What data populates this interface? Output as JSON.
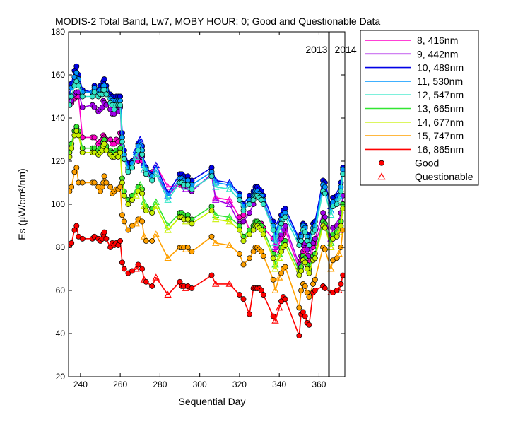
{
  "chart_data": {
    "type": "line",
    "title": "MODIS-2 Total Band,  Lw7, MOBY HOUR: 0;  Good and Questionable Data",
    "xlabel": "Sequential Day",
    "ylabel": "Es (µW/cm²/nm)",
    "xlim": [
      234,
      373
    ],
    "ylim": [
      20,
      180
    ],
    "xticks": [
      240,
      260,
      280,
      300,
      320,
      340,
      360
    ],
    "yticks": [
      20,
      40,
      60,
      80,
      100,
      120,
      140,
      160,
      180
    ],
    "grid": false,
    "legend_position": "outside-right",
    "year_divider": {
      "x": 365,
      "labels": [
        "2013",
        "2014"
      ]
    },
    "marker_legend": [
      {
        "label": "Good",
        "marker": "filled-circle"
      },
      {
        "label": "Questionable",
        "marker": "open-triangle"
      }
    ],
    "x": [
      234.5,
      235.5,
      237,
      238,
      239,
      241,
      246,
      247,
      249,
      250,
      251,
      251.5,
      252,
      253,
      255,
      256,
      257,
      258,
      259,
      260,
      261,
      262,
      264,
      266,
      268,
      269,
      270,
      271,
      272,
      273,
      276,
      278,
      284,
      290,
      291,
      292,
      293,
      294,
      296,
      306,
      308,
      315,
      320,
      322,
      325,
      327,
      328,
      329,
      330,
      331,
      332,
      337,
      338,
      340,
      341,
      342,
      343,
      350,
      351,
      352,
      353,
      354,
      355,
      357,
      358,
      362,
      363,
      366,
      367,
      369,
      370,
      371,
      372
    ],
    "questionable_x": [
      268,
      270,
      272,
      278,
      284,
      293,
      308,
      315,
      338,
      340,
      356,
      360,
      366,
      370
    ],
    "series": [
      {
        "name": "8, 416nm",
        "color": "#ff00c8",
        "values": [
          146,
          147,
          149,
          150,
          150,
          131,
          131,
          131,
          128,
          129,
          130,
          132,
          131,
          130,
          130,
          128,
          128,
          130,
          129,
          133,
          125,
          121,
          116,
          117,
          121,
          120,
          122,
          120,
          116,
          114,
          115,
          118,
          108,
          109,
          110,
          108,
          108,
          109,
          107,
          113,
          103,
          102,
          94,
          95,
          88,
          90,
          91,
          91,
          90,
          91,
          89,
          84,
          78,
          82,
          84,
          86,
          88,
          70,
          74,
          78,
          79,
          76,
          73,
          80,
          82,
          92,
          90,
          80,
          85,
          86,
          88,
          92,
          100
        ]
      },
      {
        "name": "9, 442nm",
        "color": "#a000e6",
        "values": [
          147,
          148,
          151,
          152,
          152,
          145,
          146,
          145,
          143,
          144,
          145,
          148,
          147,
          146,
          144,
          142,
          142,
          144,
          143,
          145,
          127,
          121,
          115,
          117,
          122,
          122,
          124,
          122,
          116,
          114,
          112,
          114,
          104,
          110,
          110,
          108,
          107,
          108,
          106,
          114,
          102,
          100,
          91,
          92,
          96,
          100,
          104,
          106,
          105,
          104,
          101,
          88,
          80,
          84,
          86,
          88,
          90,
          72,
          76,
          81,
          82,
          79,
          76,
          82,
          84,
          96,
          94,
          84,
          89,
          90,
          92,
          96,
          104
        ]
      },
      {
        "name": "10, 489nm",
        "color": "#0000e6",
        "values": [
          151,
          156,
          162,
          164,
          160,
          153,
          152,
          155,
          153,
          155,
          154,
          157,
          158,
          155,
          151,
          150,
          148,
          150,
          150,
          150,
          133,
          125,
          119,
          120,
          125,
          128,
          130,
          127,
          119,
          117,
          114,
          118,
          105,
          114,
          114,
          113,
          112,
          113,
          111,
          117,
          111,
          110,
          105,
          100,
          104,
          106,
          108,
          108,
          107,
          106,
          104,
          92,
          86,
          92,
          95,
          97,
          98,
          84,
          86,
          91,
          90,
          86,
          84,
          91,
          92,
          111,
          110,
          99,
          103,
          104,
          106,
          110,
          117
        ]
      },
      {
        "name": "11, 530nm",
        "color": "#0096ff",
        "values": [
          150,
          154,
          159,
          161,
          158,
          152,
          152,
          154,
          152,
          153,
          153,
          155,
          155,
          153,
          149,
          148,
          146,
          148,
          148,
          148,
          131,
          123,
          117,
          119,
          124,
          127,
          128,
          125,
          118,
          116,
          113,
          116,
          104,
          112,
          112,
          111,
          110,
          111,
          109,
          115,
          110,
          109,
          104,
          99,
          102,
          104,
          106,
          106,
          105,
          104,
          102,
          90,
          84,
          90,
          93,
          95,
          96,
          83,
          85,
          90,
          89,
          85,
          83,
          89,
          90,
          109,
          108,
          97,
          101,
          102,
          104,
          108,
          116
        ]
      },
      {
        "name": "12, 547nm",
        "color": "#32e6c8",
        "values": [
          146,
          150,
          155,
          157,
          155,
          150,
          150,
          152,
          150,
          151,
          151,
          153,
          153,
          151,
          147,
          146,
          144,
          146,
          146,
          146,
          129,
          121,
          115,
          117,
          122,
          125,
          126,
          123,
          116,
          114,
          111,
          114,
          102,
          110,
          110,
          109,
          108,
          109,
          107,
          113,
          108,
          107,
          102,
          97,
          100,
          102,
          104,
          104,
          103,
          102,
          100,
          88,
          82,
          88,
          91,
          93,
          94,
          81,
          83,
          88,
          87,
          83,
          81,
          87,
          88,
          106,
          105,
          95,
          99,
          100,
          102,
          106,
          114
        ]
      },
      {
        "name": "13, 665nm",
        "color": "#32e632",
        "values": [
          124,
          128,
          134,
          136,
          134,
          126,
          126,
          126,
          125,
          126,
          127,
          129,
          130,
          127,
          125,
          124,
          124,
          125,
          124,
          126,
          112,
          106,
          102,
          104,
          106,
          108,
          109,
          107,
          101,
          99,
          98,
          101,
          90,
          96,
          96,
          95,
          94,
          95,
          93,
          99,
          95,
          94,
          90,
          85,
          88,
          90,
          92,
          92,
          91,
          90,
          88,
          77,
          72,
          77,
          80,
          82,
          83,
          69,
          71,
          76,
          75,
          72,
          70,
          76,
          77,
          92,
          91,
          82,
          86,
          87,
          89,
          92,
          100
        ]
      },
      {
        "name": "14, 677nm",
        "color": "#c8f000",
        "values": [
          122,
          126,
          132,
          134,
          132,
          124,
          124,
          124,
          123,
          124,
          125,
          127,
          128,
          125,
          123,
          122,
          122,
          123,
          122,
          124,
          110,
          104,
          100,
          102,
          104,
          106,
          107,
          105,
          99,
          97,
          96,
          99,
          88,
          94,
          94,
          93,
          92,
          93,
          91,
          97,
          93,
          92,
          88,
          83,
          86,
          88,
          90,
          90,
          89,
          88,
          86,
          75,
          70,
          75,
          78,
          80,
          81,
          67,
          69,
          74,
          73,
          70,
          68,
          74,
          75,
          90,
          89,
          80,
          84,
          85,
          87,
          90,
          98
        ]
      },
      {
        "name": "15, 747nm",
        "color": "#ffa000",
        "values": [
          106,
          108,
          115,
          117,
          110,
          110,
          110,
          110,
          108,
          106,
          108,
          110,
          113,
          110,
          108,
          105,
          106,
          107,
          107,
          108,
          95,
          92,
          88,
          90,
          91,
          93,
          93,
          92,
          85,
          83,
          83,
          86,
          75,
          80,
          80,
          80,
          79,
          80,
          78,
          85,
          82,
          81,
          77,
          72,
          75,
          78,
          80,
          80,
          79,
          78,
          76,
          65,
          60,
          66,
          68,
          70,
          71,
          52,
          60,
          63,
          62,
          59,
          57,
          63,
          65,
          80,
          79,
          70,
          74,
          75,
          77,
          80,
          88
        ]
      },
      {
        "name": "16, 865nm",
        "color": "#ff0000",
        "values": [
          81,
          82,
          88,
          90,
          85,
          84,
          84,
          85,
          84,
          83,
          84,
          86,
          87,
          84,
          80,
          82,
          81,
          82,
          81,
          83,
          73,
          70,
          68,
          69,
          70,
          72,
          71,
          70,
          65,
          64,
          62,
          66,
          58,
          64,
          62,
          62,
          61,
          62,
          61,
          67,
          63,
          63,
          58,
          56,
          49,
          61,
          61,
          61,
          61,
          60,
          58,
          48,
          46,
          52,
          55,
          57,
          56,
          39,
          49,
          50,
          48,
          45,
          44,
          59,
          60,
          62,
          61,
          59,
          59,
          60,
          60,
          63,
          67
        ]
      }
    ]
  }
}
